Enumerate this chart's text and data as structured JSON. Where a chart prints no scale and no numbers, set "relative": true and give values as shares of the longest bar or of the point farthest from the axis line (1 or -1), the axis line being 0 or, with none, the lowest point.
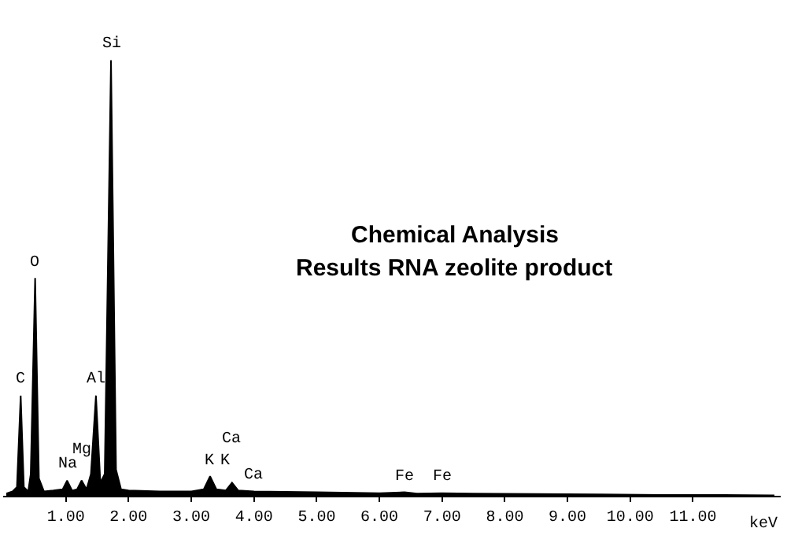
{
  "chart_data": {
    "type": "area",
    "title": "Chemical Analysis",
    "subtitle": "Results RNA zeolite product",
    "xlabel": "keV",
    "relative": true,
    "x": [
      0.05,
      0.15,
      0.22,
      0.28,
      0.33,
      0.4,
      0.44,
      0.51,
      0.57,
      0.65,
      0.8,
      0.95,
      1.02,
      1.1,
      1.18,
      1.25,
      1.33,
      1.4,
      1.48,
      1.55,
      1.62,
      1.72,
      1.8,
      1.88,
      2.0,
      2.5,
      3.0,
      3.2,
      3.3,
      3.4,
      3.55,
      3.65,
      3.75,
      4.0,
      5.0,
      6.0,
      6.4,
      6.6,
      7.0,
      7.5,
      8.5,
      9.5,
      10.5,
      11.5,
      12.3
    ],
    "series": [
      {
        "color": "#000000",
        "values": [
          0.005,
          0.01,
          0.02,
          0.23,
          0.02,
          0.01,
          0.05,
          0.5,
          0.04,
          0.01,
          0.012,
          0.015,
          0.035,
          0.012,
          0.015,
          0.035,
          0.015,
          0.05,
          0.23,
          0.03,
          0.05,
          1.0,
          0.06,
          0.015,
          0.012,
          0.01,
          0.01,
          0.015,
          0.045,
          0.015,
          0.012,
          0.03,
          0.012,
          0.01,
          0.008,
          0.006,
          0.008,
          0.005,
          0.006,
          0.005,
          0.004,
          0.003,
          0.002,
          0.002,
          0.001
        ]
      }
    ],
    "xlim": [
      0,
      12.4
    ],
    "xticks": [
      {
        "value": 1,
        "label": "1.00"
      },
      {
        "value": 2,
        "label": "2.00"
      },
      {
        "value": 3,
        "label": "3.00"
      },
      {
        "value": 4,
        "label": "4.00"
      },
      {
        "value": 5,
        "label": "5.00"
      },
      {
        "value": 6,
        "label": "6.00"
      },
      {
        "value": 7,
        "label": "7.00"
      },
      {
        "value": 8,
        "label": "8.00"
      },
      {
        "value": 9,
        "label": "9.00"
      },
      {
        "value": 10,
        "label": "10.00"
      },
      {
        "value": 11,
        "label": "11.00"
      }
    ],
    "annotations": [
      {
        "text": "Si",
        "x": 1.72,
        "y": 1.0
      },
      {
        "text": "O",
        "x": 0.51,
        "y": 0.5
      },
      {
        "text": "C",
        "x": 0.28,
        "y": 0.23
      },
      {
        "text": "Al",
        "x": 1.48,
        "y": 0.23
      },
      {
        "text": "Mg",
        "x": 1.25,
        "y": 0.035
      },
      {
        "text": "Na",
        "x": 1.02,
        "y": 0.035
      },
      {
        "text": "K",
        "x": 3.3,
        "y": 0.045
      },
      {
        "text": "K",
        "x": 3.55,
        "y": 0.012
      },
      {
        "text": "Ca",
        "x": 3.65,
        "y": 0.03
      },
      {
        "text": "Ca",
        "x": 4.0,
        "y": 0.01
      },
      {
        "text": "Fe",
        "x": 6.4,
        "y": 0.008
      },
      {
        "text": "Fe",
        "x": 7.0,
        "y": 0.006
      }
    ],
    "marker": "none"
  }
}
